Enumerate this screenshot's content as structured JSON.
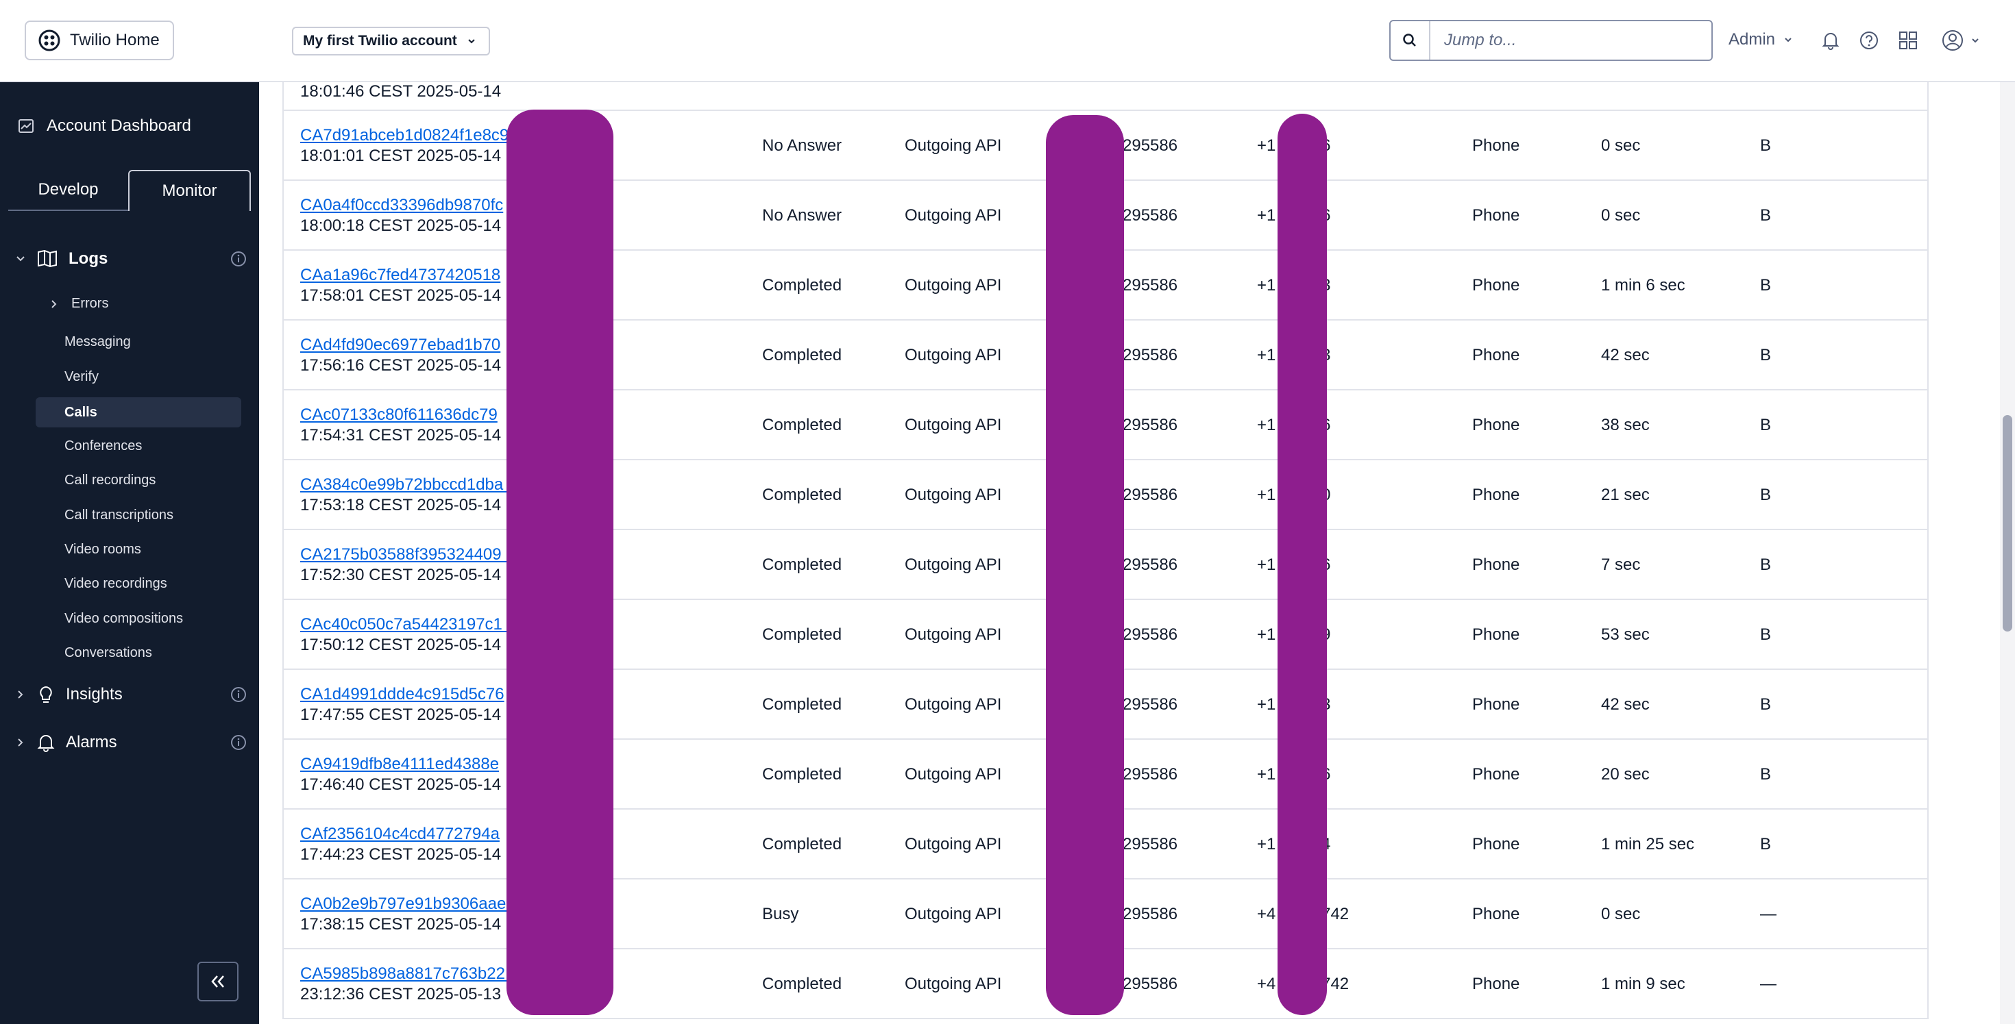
{
  "topbar": {
    "home_label": "Twilio Home",
    "account_label": "My first Twilio account",
    "search_placeholder": "Jump to...",
    "user_label": "Admin"
  },
  "sidebar": {
    "dashboard_label": "Account Dashboard",
    "tabs": [
      {
        "label": "Develop",
        "active": false
      },
      {
        "label": "Monitor",
        "active": true
      }
    ],
    "logs_label": "Logs",
    "errors_label": "Errors",
    "log_items": [
      {
        "label": "Messaging"
      },
      {
        "label": "Verify"
      },
      {
        "label": "Calls",
        "active": true
      },
      {
        "label": "Conferences"
      },
      {
        "label": "Call recordings"
      },
      {
        "label": "Call transcriptions"
      },
      {
        "label": "Video rooms"
      },
      {
        "label": "Video recordings"
      },
      {
        "label": "Video compositions"
      },
      {
        "label": "Conversations"
      }
    ],
    "insights_label": "Insights",
    "alarms_label": "Alarms"
  },
  "calls": {
    "partial_row": {
      "time": "18:01:46 CEST 2025-05-14"
    },
    "rows": [
      {
        "sid": "CA7d91abceb1d0824f1e8c9",
        "time": "18:01:01 CEST 2025-05-14",
        "status": "No Answer",
        "direction": "Outgoing API",
        "from": "295586",
        "to": "+1  49436",
        "type": "Phone",
        "duration": "0 sec",
        "flag": "B"
      },
      {
        "sid": "CA0a4f0ccd33396db9870fc",
        "time": "18:00:18 CEST 2025-05-14",
        "status": "No Answer",
        "direction": "Outgoing API",
        "from": "295586",
        "to": "+1  82066",
        "type": "Phone",
        "duration": "0 sec",
        "flag": "B"
      },
      {
        "sid": "CAa1a96c7fed4737420518",
        "time": "17:58:01 CEST 2025-05-14",
        "status": "Completed",
        "direction": "Outgoing API",
        "from": "295586",
        "to": "+1  95413",
        "type": "Phone",
        "duration": "1 min 6 sec",
        "flag": "B"
      },
      {
        "sid": "CAd4fd90ec6977ebad1b70",
        "time": "17:56:16 CEST 2025-05-14",
        "status": "Completed",
        "direction": "Outgoing API",
        "from": "295586",
        "to": "+1  02773",
        "type": "Phone",
        "duration": "42 sec",
        "flag": "B"
      },
      {
        "sid": "CAc07133c80f611636dc79",
        "time": "17:54:31 CEST 2025-05-14",
        "status": "Completed",
        "direction": "Outgoing API",
        "from": "295586",
        "to": "+1  35546",
        "type": "Phone",
        "duration": "38 sec",
        "flag": "B"
      },
      {
        "sid": "CA384c0e99b72bbccd1dba                  b",
        "time": "17:53:18 CEST 2025-05-14",
        "status": "Completed",
        "direction": "Outgoing API",
        "from": "295586",
        "to": "+1  35000",
        "type": "Phone",
        "duration": "21 sec",
        "flag": "B"
      },
      {
        "sid": "CA2175b03588f395324409                  4",
        "time": "17:52:30 CEST 2025-05-14",
        "status": "Completed",
        "direction": "Outgoing API",
        "from": "295586",
        "to": "+1  20446",
        "type": "Phone",
        "duration": "7 sec",
        "flag": "B"
      },
      {
        "sid": "CAc40c050c7a54423197c1                  7",
        "time": "17:50:12 CEST 2025-05-14",
        "status": "Completed",
        "direction": "Outgoing API",
        "from": "295586",
        "to": "+1  51559",
        "type": "Phone",
        "duration": "53 sec",
        "flag": "B"
      },
      {
        "sid": "CA1d4991ddde4c915d5c76",
        "time": "17:47:55 CEST 2025-05-14",
        "status": "Completed",
        "direction": "Outgoing API",
        "from": "295586",
        "to": "+1  36753",
        "type": "Phone",
        "duration": "42 sec",
        "flag": "B"
      },
      {
        "sid": "CA9419dfb8e4111ed4388e",
        "time": "17:46:40 CEST 2025-05-14",
        "status": "Completed",
        "direction": "Outgoing API",
        "from": "295586",
        "to": "+1  59136",
        "type": "Phone",
        "duration": "20 sec",
        "flag": "B"
      },
      {
        "sid": "CAf2356104c4cd4772794a",
        "time": "17:44:23 CEST 2025-05-14",
        "status": "Completed",
        "direction": "Outgoing API",
        "from": "295586",
        "to": "+1  31004",
        "type": "Phone",
        "duration": "1 min 25 sec",
        "flag": "B"
      },
      {
        "sid": "CA0b2e9b797e91b9306aae                  c",
        "time": "17:38:15 CEST 2025-05-14",
        "status": "Busy",
        "direction": "Outgoing API",
        "from": "295586",
        "to": "+4  1826742",
        "type": "Phone",
        "duration": "0 sec",
        "flag": "—"
      },
      {
        "sid": "CA5985b898a8817c763b22                  7",
        "time": "23:12:36 CEST 2025-05-13",
        "status": "Completed",
        "direction": "Outgoing API",
        "from": "295586",
        "to": "+4  1826742",
        "type": "Phone",
        "duration": "1 min 9 sec",
        "flag": "—"
      }
    ]
  },
  "colors": {
    "sidebar_bg": "#121c2d",
    "link": "#0263e0",
    "redaction": "#8e1e8e"
  }
}
